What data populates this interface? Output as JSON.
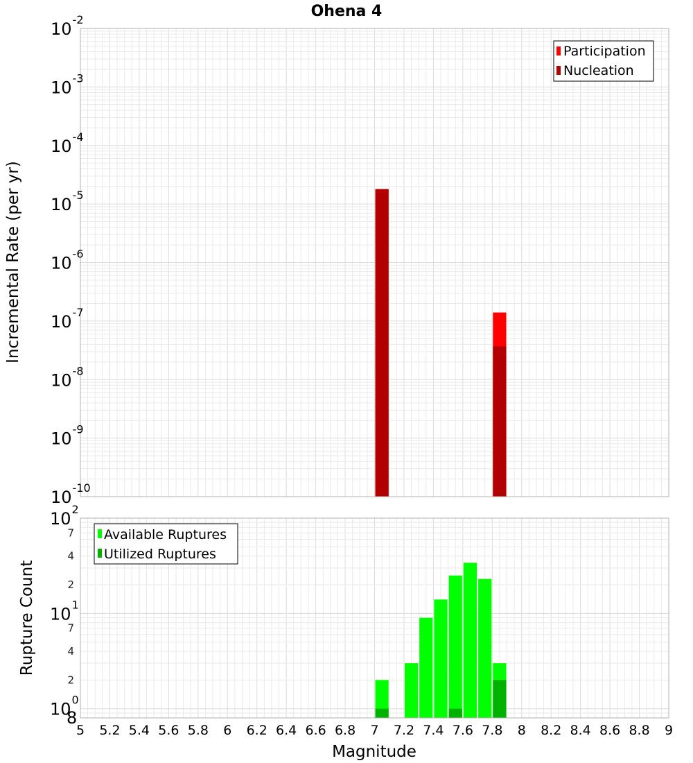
{
  "chart_data": [
    {
      "type": "bar",
      "title": "Ohena 4",
      "xlabel": "",
      "ylabel": "Incremental Rate (per yr)",
      "yscale": "log",
      "ylim": [
        1e-10,
        0.01
      ],
      "xlim": [
        5,
        9
      ],
      "bar_width": 0.1,
      "grid": true,
      "legend_position": "top-right",
      "series": [
        {
          "name": "Participation",
          "color": "#ff0000",
          "x": [
            7.05,
            7.85
          ],
          "values": [
            1.8e-05,
            1.4e-07
          ]
        },
        {
          "name": "Nucleation",
          "color": "#b20000",
          "x": [
            7.05,
            7.85
          ],
          "values": [
            1.8e-05,
            3.7e-08
          ]
        }
      ]
    },
    {
      "type": "bar",
      "title": "",
      "xlabel": "Magnitude",
      "ylabel": "Rupture Count",
      "yscale": "log",
      "ylim": [
        0.8,
        100
      ],
      "xlim": [
        5,
        9
      ],
      "bar_width": 0.1,
      "grid": true,
      "legend_position": "top-left",
      "x_ticks": [
        "5",
        "5.2",
        "5.4",
        "5.6",
        "5.8",
        "6",
        "6.2",
        "6.4",
        "6.6",
        "6.8",
        "7",
        "7.2",
        "7.4",
        "7.6",
        "7.8",
        "8",
        "8.2",
        "8.4",
        "8.6",
        "8.8",
        "9"
      ],
      "y_minor_labels": [
        {
          "value": 2,
          "label": "2"
        },
        {
          "value": 4,
          "label": "4"
        },
        {
          "value": 7,
          "label": "7"
        },
        {
          "value": 20,
          "label": "2"
        },
        {
          "value": 40,
          "label": "4"
        },
        {
          "value": 70,
          "label": "7"
        }
      ],
      "y_bottom_label": "8",
      "series": [
        {
          "name": "Available Ruptures",
          "color": "#00ff00",
          "x": [
            7.05,
            7.25,
            7.35,
            7.45,
            7.55,
            7.65,
            7.75,
            7.85
          ],
          "values": [
            2,
            3,
            9,
            14,
            25,
            34,
            23,
            3
          ]
        },
        {
          "name": "Utilized Ruptures",
          "color": "#00b200",
          "x": [
            7.05,
            7.55,
            7.85
          ],
          "values": [
            1,
            1,
            2
          ]
        }
      ]
    }
  ]
}
